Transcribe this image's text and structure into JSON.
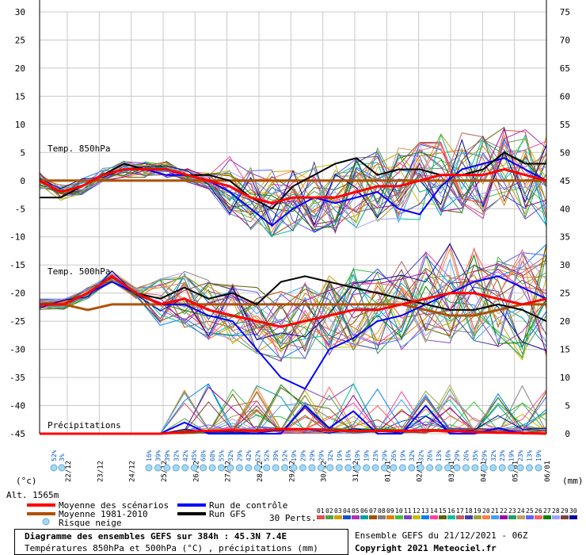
{
  "labels": {
    "panel_850": "Temp. 850hPa",
    "panel_500": "Temp. 500hPa",
    "panel_precip": "Précipitations",
    "unit_left": "(°c)",
    "unit_right": "(mm)",
    "altitude": "Alt. 1565m"
  },
  "legend": {
    "mean_scenarios": "Moyenne des scénarios",
    "mean_climate": "Moyenne 1981-2010",
    "snow_risk": "Risque neige",
    "control_run": "Run de contrôle",
    "gfs_run": "Run GFS",
    "perts_label": "30 Perts."
  },
  "footer": {
    "title": "Diagramme des ensembles GEFS sur 384h : 45.3N 7.4E",
    "subtitle": "Températures 850hPa et 500hPa (°C) , précipitations (mm)",
    "run_info": "Ensemble GEFS du 21/12/2021 - 06Z",
    "copyright": "Copyright 2021 Meteociel.fr"
  },
  "colors": {
    "mean": "#ff0000",
    "climate": "#b05000",
    "control": "#0000ff",
    "gfs": "#000000",
    "grid": "#c8c8c8",
    "pct": "#1060c0"
  },
  "perturbations": {
    "labels": [
      "01",
      "02",
      "03",
      "04",
      "05",
      "06",
      "07",
      "08",
      "09",
      "10",
      "11",
      "12",
      "13",
      "14",
      "15",
      "16",
      "17",
      "18",
      "19",
      "20",
      "21",
      "22",
      "23",
      "24",
      "25",
      "26",
      "27",
      "28",
      "29",
      "30"
    ],
    "colors": [
      "#e05050",
      "#50a050",
      "#d0a000",
      "#1050d0",
      "#b030b0",
      "#00a0a0",
      "#a05000",
      "#808080",
      "#e08000",
      "#40c040",
      "#8040c0",
      "#c0c000",
      "#0080ff",
      "#ff40a0",
      "#606000",
      "#00c0a0",
      "#c06060",
      "#4040a0",
      "#a0a040",
      "#ff8040",
      "#40a0ff",
      "#a000a0",
      "#20a060",
      "#c0a060",
      "#6060ff",
      "#ff6060",
      "#008000",
      "#a0a0ff",
      "#804040",
      "#0000a0"
    ]
  },
  "chart_data": {
    "type": "line",
    "x_dates": [
      "22/12",
      "23/12",
      "24/12",
      "25/12",
      "26/12",
      "27/12",
      "28/12",
      "29/12",
      "30/12",
      "31/12",
      "01/01",
      "02/01",
      "03/01",
      "04/01",
      "05/01",
      "06/01"
    ],
    "y_left_range": [
      -45,
      30
    ],
    "y_left_ticks": [
      30,
      25,
      20,
      15,
      10,
      5,
      0,
      -5,
      -10,
      -15,
      -20,
      -25,
      -30,
      -35,
      -40,
      -45
    ],
    "y_right_ticks": [
      75,
      70,
      65,
      60,
      55,
      50,
      45,
      40,
      35,
      30,
      25,
      20,
      15,
      10,
      5,
      0
    ],
    "snow_risk_pct": [
      "52%",
      "3%",
      "16%",
      "39%",
      "39%",
      "32%",
      "42%",
      "45%",
      "68%",
      "68%",
      "55%",
      "32%",
      "29%",
      "42%",
      "52%",
      "52%",
      "39%",
      "52%",
      "19%",
      "29%",
      "29%",
      "29%",
      "32%",
      "19%",
      "16%",
      "19%",
      "19%",
      "23%",
      "29%",
      "26%",
      "19%",
      "32%",
      "32%",
      "26%",
      "13%",
      "16%",
      "29%",
      "26%",
      "35%",
      "29%",
      "32%",
      "23%",
      "19%",
      "23%",
      "13%",
      "19%"
    ],
    "series_850": {
      "mean": [
        0,
        -2,
        -1,
        1,
        2,
        2,
        2,
        1,
        0,
        -1,
        -3,
        -4,
        -3,
        -3,
        -3,
        -2,
        -1,
        -1,
        0,
        1,
        1,
        1,
        2,
        1,
        0
      ],
      "climate": [
        0,
        0,
        0,
        0,
        0,
        0,
        0,
        0,
        0,
        0,
        0,
        0,
        0,
        0,
        0,
        0,
        0,
        0,
        0,
        0,
        0,
        0,
        0,
        0,
        0
      ],
      "control": [
        0,
        -2,
        -1,
        1,
        2,
        2,
        1,
        1,
        0,
        -2,
        -5,
        -8,
        -5,
        -3,
        -4,
        -3,
        -2,
        -5,
        -6,
        -1,
        2,
        3,
        4,
        2,
        0
      ],
      "gfs": [
        -3,
        -3,
        -1,
        1,
        3,
        2,
        2,
        1,
        1,
        0,
        -3,
        -5,
        -1,
        1,
        3,
        4,
        1,
        2,
        2,
        1,
        1,
        2,
        5,
        3,
        3
      ]
    },
    "series_500": {
      "mean": [
        -22,
        -22,
        -20,
        -17,
        -20,
        -22,
        -21,
        -23,
        -24,
        -25,
        -26,
        -25,
        -24,
        -23,
        -23,
        -22,
        -21,
        -20,
        -20,
        -21,
        -22,
        -21
      ],
      "climate": [
        -22,
        -22,
        -23,
        -22,
        -22,
        -22,
        -22,
        -22,
        -22,
        -22,
        -22,
        -22,
        -22,
        -22,
        -22,
        -22,
        -23,
        -24,
        -24,
        -23,
        -22,
        -22
      ],
      "control": [
        -22,
        -22,
        -20,
        -18,
        -20,
        -22,
        -22,
        -24,
        -25,
        -30,
        -35,
        -37,
        -30,
        -28,
        -25,
        -24,
        -22,
        -20,
        -18,
        -17,
        -19,
        -21
      ],
      "gfs": [
        -22,
        -22,
        -20,
        -17,
        -20,
        -21,
        -19,
        -21,
        -20,
        -22,
        -18,
        -17,
        -18,
        -19,
        -20,
        -21,
        -22,
        -23,
        -23,
        -22,
        -23,
        -25
      ]
    },
    "series_precip_mm": {
      "mean": [
        0,
        0,
        0,
        0,
        0,
        0,
        0.3,
        0.5,
        0.6,
        0.5,
        0.8,
        0.8,
        0.6,
        0.5,
        0.5,
        0.5,
        0.6,
        0.5,
        0.3,
        0.2,
        0.1,
        0
      ],
      "control": [
        0,
        0,
        0,
        0,
        0,
        0,
        2,
        0,
        0,
        0,
        0,
        5,
        1,
        4,
        0,
        0,
        5,
        0,
        0,
        1,
        0,
        0
      ]
    }
  }
}
